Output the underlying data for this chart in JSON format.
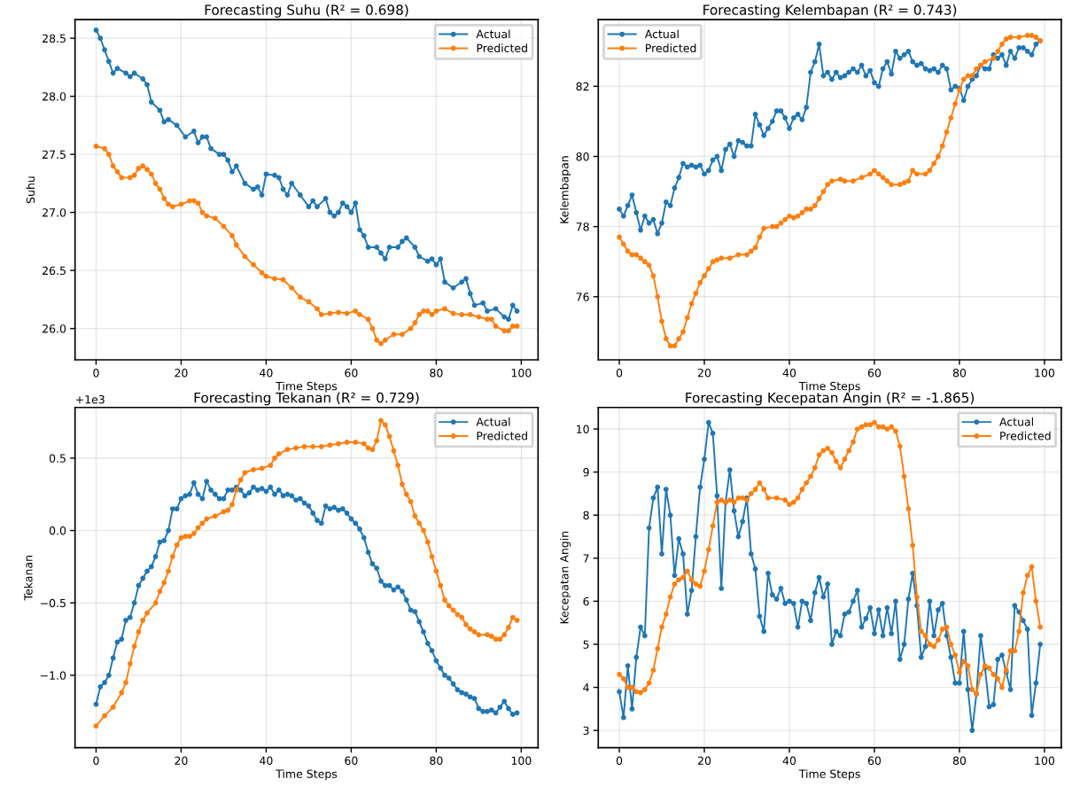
{
  "chart_data": [
    {
      "type": "line",
      "title": "Forecasting Suhu (R² = 0.698)",
      "xlabel": "Time Steps",
      "ylabel": "Suhu",
      "xlim": [
        -4.95,
        103.95
      ],
      "xticks": [
        0,
        20,
        40,
        60,
        80,
        100
      ],
      "ylim": [
        25.73,
        28.66
      ],
      "yticks": [
        {
          "value": 26.0,
          "label": "26.0"
        },
        {
          "value": 26.5,
          "label": "26.5"
        },
        {
          "value": 27.0,
          "label": "27.0"
        },
        {
          "value": 27.5,
          "label": "27.5"
        },
        {
          "value": 28.0,
          "label": "28.0"
        },
        {
          "value": 28.5,
          "label": "28.5"
        }
      ],
      "grid": true,
      "legend": "top right",
      "marker": "circle",
      "line_style": "solid",
      "series": [
        {
          "name": "Actual",
          "color": "#1f77b4",
          "x": [
            0,
            1,
            2,
            3,
            4,
            5,
            7,
            8,
            9,
            11,
            12,
            13,
            15,
            16,
            17,
            19,
            21,
            23,
            24,
            25,
            26,
            27,
            29,
            30,
            31,
            32,
            33,
            35,
            37,
            38,
            39,
            40,
            42,
            43,
            44,
            45,
            46,
            48,
            50,
            51,
            52,
            54,
            55,
            56,
            57,
            58,
            59,
            60,
            61,
            62,
            63,
            64,
            66,
            67,
            68,
            69,
            71,
            72,
            73,
            75,
            76,
            78,
            79,
            80,
            81,
            82,
            84,
            86,
            87,
            88,
            89,
            91,
            92,
            94,
            96,
            97,
            98,
            99
          ],
          "values": [
            28.57,
            28.5,
            28.4,
            28.3,
            28.2,
            28.24,
            28.2,
            28.17,
            28.2,
            28.15,
            28.1,
            27.95,
            27.88,
            27.78,
            27.8,
            27.75,
            27.65,
            27.7,
            27.6,
            27.65,
            27.65,
            27.55,
            27.5,
            27.5,
            27.45,
            27.35,
            27.4,
            27.25,
            27.2,
            27.22,
            27.15,
            27.33,
            27.32,
            27.3,
            27.2,
            27.15,
            27.25,
            27.15,
            27.05,
            27.1,
            27.05,
            27.12,
            27.0,
            26.97,
            27.0,
            27.08,
            27.05,
            27.0,
            27.08,
            26.85,
            26.8,
            26.7,
            26.7,
            26.65,
            26.6,
            26.7,
            26.7,
            26.75,
            26.78,
            26.7,
            26.62,
            26.58,
            26.6,
            26.55,
            26.6,
            26.4,
            26.35,
            26.4,
            26.43,
            26.3,
            26.2,
            26.22,
            26.15,
            26.17,
            26.1,
            26.08,
            26.2,
            26.15
          ]
        },
        {
          "name": "Predicted",
          "color": "#ff7f0e",
          "x": [
            0,
            2,
            3,
            4,
            5,
            6,
            8,
            9,
            10,
            11,
            12,
            13,
            14,
            15,
            16,
            17,
            18,
            20,
            22,
            23,
            24,
            25,
            26,
            28,
            30,
            32,
            33,
            35,
            37,
            39,
            40,
            42,
            44,
            46,
            48,
            50,
            52,
            53,
            55,
            57,
            59,
            61,
            62,
            64,
            65,
            66,
            67,
            68,
            70,
            72,
            74,
            75,
            76,
            77,
            78,
            79,
            80,
            82,
            84,
            86,
            88,
            90,
            92,
            93,
            94,
            96,
            97,
            98,
            99
          ],
          "values": [
            27.57,
            27.55,
            27.5,
            27.4,
            27.35,
            27.3,
            27.3,
            27.32,
            27.38,
            27.4,
            27.37,
            27.33,
            27.25,
            27.2,
            27.12,
            27.07,
            27.05,
            27.07,
            27.1,
            27.1,
            27.08,
            27.0,
            26.97,
            26.95,
            26.88,
            26.8,
            26.72,
            26.62,
            26.55,
            26.48,
            26.45,
            26.43,
            26.42,
            26.35,
            26.27,
            26.23,
            26.17,
            26.12,
            26.13,
            26.14,
            26.13,
            26.15,
            26.12,
            26.08,
            26.0,
            25.9,
            25.87,
            25.9,
            25.95,
            25.95,
            26.0,
            26.05,
            26.12,
            26.15,
            26.15,
            26.12,
            26.15,
            26.17,
            26.13,
            26.12,
            26.12,
            26.1,
            26.08,
            26.08,
            26.02,
            25.98,
            25.98,
            26.02,
            26.02
          ]
        }
      ]
    },
    {
      "type": "line",
      "title": "Forecasting Kelembapan (R² = 0.743)",
      "xlabel": "Time Steps",
      "ylabel": "Kelembapan",
      "xlim": [
        -4.95,
        103.95
      ],
      "xticks": [
        0,
        20,
        40,
        60,
        80,
        100
      ],
      "ylim": [
        74.2,
        83.9
      ],
      "yticks": [
        76,
        78,
        80,
        82
      ],
      "grid": true,
      "legend": "top left",
      "marker": "circle",
      "line_style": "solid",
      "series": [
        {
          "name": "Actual",
          "color": "#1f77b4",
          "x": [
            0,
            1,
            2,
            3,
            4,
            5,
            6,
            7,
            8,
            9,
            10,
            11,
            12,
            13,
            14,
            15,
            16,
            17,
            18,
            19,
            20,
            21,
            22,
            23,
            24,
            25,
            26,
            27,
            28,
            29,
            30,
            31,
            32,
            33,
            34,
            35,
            36,
            37,
            38,
            39,
            40,
            41,
            42,
            43,
            44,
            45,
            46,
            47,
            48,
            49,
            50,
            51,
            52,
            53,
            54,
            55,
            56,
            57,
            58,
            59,
            60,
            61,
            62,
            63,
            64,
            65,
            66,
            67,
            68,
            69,
            70,
            71,
            72,
            73,
            74,
            75,
            76,
            77,
            78,
            79,
            80,
            81,
            82,
            83,
            84,
            85,
            86,
            87,
            88,
            89,
            90,
            91,
            92,
            93,
            94,
            95,
            96,
            97,
            98,
            99
          ],
          "values": [
            78.5,
            78.3,
            78.6,
            78.9,
            78.4,
            77.9,
            78.3,
            78.1,
            78.2,
            77.8,
            78.1,
            78.7,
            78.6,
            79.1,
            79.4,
            79.8,
            79.7,
            79.75,
            79.7,
            79.75,
            79.5,
            79.6,
            79.9,
            80.0,
            79.6,
            80.2,
            80.35,
            80.0,
            80.45,
            80.4,
            80.3,
            80.3,
            81.2,
            80.9,
            80.6,
            80.8,
            81.0,
            81.3,
            81.3,
            81.1,
            80.8,
            81.1,
            81.2,
            81.05,
            81.4,
            82.4,
            82.7,
            83.2,
            82.3,
            82.4,
            82.2,
            82.4,
            82.25,
            82.3,
            82.4,
            82.5,
            82.4,
            82.6,
            82.3,
            82.45,
            82.1,
            82.0,
            82.5,
            82.7,
            82.35,
            83.0,
            82.8,
            82.9,
            83.0,
            82.7,
            82.6,
            82.65,
            82.5,
            82.45,
            82.5,
            82.4,
            82.6,
            82.5,
            81.9,
            82.0,
            81.95,
            81.6,
            82.0,
            82.2,
            82.3,
            82.6,
            82.5,
            82.5,
            82.9,
            82.8,
            82.9,
            82.6,
            83.0,
            82.8,
            83.1,
            83.1,
            83.0,
            82.9,
            83.2,
            83.3
          ]
        },
        {
          "name": "Predicted",
          "color": "#ff7f0e",
          "x": [
            0,
            1,
            2,
            3,
            4,
            5,
            6,
            7,
            8,
            9,
            10,
            11,
            12,
            13,
            14,
            15,
            16,
            17,
            18,
            19,
            20,
            21,
            22,
            23,
            24,
            26,
            28,
            30,
            31,
            32,
            33,
            34,
            36,
            37,
            38,
            39,
            40,
            41,
            42,
            43,
            44,
            45,
            46,
            47,
            48,
            49,
            50,
            52,
            53,
            55,
            57,
            59,
            60,
            61,
            62,
            63,
            64,
            66,
            67,
            68,
            69,
            70,
            72,
            73,
            74,
            75,
            76,
            77,
            78,
            79,
            80,
            81,
            82,
            83,
            84,
            85,
            86,
            88,
            89,
            90,
            91,
            92,
            94,
            96,
            97,
            98,
            99
          ],
          "values": [
            77.7,
            77.5,
            77.3,
            77.2,
            77.2,
            77.1,
            77.0,
            76.9,
            76.6,
            76.0,
            75.3,
            74.8,
            74.6,
            74.6,
            74.8,
            75.0,
            75.4,
            75.8,
            76.1,
            76.4,
            76.6,
            76.8,
            77.0,
            77.05,
            77.1,
            77.1,
            77.2,
            77.2,
            77.3,
            77.4,
            77.7,
            77.95,
            78.0,
            78.0,
            78.1,
            78.2,
            78.3,
            78.25,
            78.3,
            78.4,
            78.5,
            78.5,
            78.6,
            78.8,
            79.0,
            79.2,
            79.3,
            79.35,
            79.3,
            79.3,
            79.4,
            79.5,
            79.6,
            79.5,
            79.4,
            79.3,
            79.2,
            79.2,
            79.25,
            79.3,
            79.6,
            79.5,
            79.5,
            79.6,
            79.8,
            80.0,
            80.3,
            80.7,
            81.1,
            81.5,
            81.9,
            82.2,
            82.3,
            82.3,
            82.5,
            82.6,
            82.7,
            82.8,
            83.0,
            83.2,
            83.35,
            83.4,
            83.4,
            83.45,
            83.45,
            83.4,
            83.3
          ]
        }
      ]
    },
    {
      "type": "line",
      "title": "Forecasting Tekanan (R² = 0.729)",
      "xlabel": "Time Steps",
      "ylabel": "Tekanan",
      "annotations": [
        "+1e3"
      ],
      "xlim": [
        -4.95,
        103.95
      ],
      "xticks": [
        0,
        20,
        40,
        60,
        80,
        100
      ],
      "ylim": [
        -1.5,
        0.85
      ],
      "yticks": [
        {
          "value": -1.0,
          "label": "−1.0"
        },
        {
          "value": -0.5,
          "label": "−0.5"
        },
        {
          "value": 0.0,
          "label": "0.0"
        },
        0.5
      ],
      "grid": true,
      "legend": "top right",
      "marker": "circle",
      "line_style": "solid",
      "series": [
        {
          "name": "Actual",
          "color": "#1f77b4",
          "x": [
            0,
            1,
            2,
            3,
            4,
            5,
            6,
            7,
            8,
            9,
            10,
            11,
            12,
            13,
            14,
            15,
            16,
            17,
            18,
            19,
            20,
            21,
            22,
            23,
            24,
            25,
            26,
            27,
            28,
            29,
            30,
            31,
            32,
            33,
            34,
            35,
            36,
            37,
            38,
            39,
            40,
            41,
            42,
            43,
            44,
            45,
            46,
            47,
            48,
            49,
            50,
            51,
            52,
            53,
            54,
            55,
            56,
            57,
            58,
            59,
            60,
            61,
            62,
            63,
            64,
            65,
            66,
            67,
            68,
            69,
            70,
            71,
            72,
            73,
            74,
            75,
            76,
            77,
            78,
            79,
            80,
            81,
            82,
            83,
            84,
            85,
            86,
            87,
            88,
            89,
            90,
            91,
            92,
            93,
            94,
            95,
            96,
            97,
            98,
            99
          ],
          "values": [
            -1.2,
            -1.08,
            -1.05,
            -1.0,
            -0.88,
            -0.77,
            -0.75,
            -0.62,
            -0.6,
            -0.5,
            -0.38,
            -0.33,
            -0.28,
            -0.25,
            -0.18,
            -0.08,
            -0.07,
            0.0,
            0.15,
            0.15,
            0.22,
            0.24,
            0.25,
            0.33,
            0.25,
            0.22,
            0.34,
            0.28,
            0.25,
            0.22,
            0.22,
            0.28,
            0.28,
            0.3,
            0.28,
            0.24,
            0.26,
            0.3,
            0.28,
            0.29,
            0.27,
            0.3,
            0.25,
            0.28,
            0.24,
            0.25,
            0.24,
            0.21,
            0.22,
            0.19,
            0.17,
            0.12,
            0.07,
            0.05,
            0.17,
            0.15,
            0.16,
            0.14,
            0.15,
            0.12,
            0.08,
            0.05,
            0.01,
            -0.05,
            -0.15,
            -0.23,
            -0.26,
            -0.35,
            -0.38,
            -0.38,
            -0.41,
            -0.39,
            -0.42,
            -0.48,
            -0.55,
            -0.56,
            -0.63,
            -0.7,
            -0.78,
            -0.83,
            -0.9,
            -0.95,
            -1.0,
            -1.02,
            -1.06,
            -1.1,
            -1.12,
            -1.13,
            -1.15,
            -1.16,
            -1.23,
            -1.25,
            -1.25,
            -1.24,
            -1.26,
            -1.22,
            -1.18,
            -1.23,
            -1.27,
            -1.26
          ]
        },
        {
          "name": "Predicted",
          "color": "#ff7f0e",
          "x": [
            0,
            2,
            4,
            6,
            7,
            8,
            9,
            10,
            11,
            12,
            14,
            15,
            16,
            17,
            18,
            19,
            20,
            21,
            22,
            23,
            24,
            25,
            26,
            28,
            30,
            31,
            32,
            33,
            34,
            35,
            37,
            39,
            41,
            42,
            43,
            45,
            47,
            49,
            51,
            53,
            55,
            57,
            59,
            61,
            63,
            64,
            65,
            66,
            67,
            68,
            69,
            70,
            71,
            72,
            73,
            74,
            75,
            76,
            77,
            78,
            79,
            80,
            81,
            82,
            83,
            84,
            85,
            86,
            87,
            88,
            89,
            90,
            92,
            93,
            94,
            95,
            96,
            97,
            98,
            99
          ],
          "values": [
            -1.35,
            -1.28,
            -1.22,
            -1.12,
            -1.05,
            -0.92,
            -0.8,
            -0.7,
            -0.62,
            -0.57,
            -0.5,
            -0.42,
            -0.36,
            -0.28,
            -0.18,
            -0.1,
            -0.05,
            -0.04,
            -0.04,
            -0.02,
            0.02,
            0.05,
            0.08,
            0.1,
            0.13,
            0.14,
            0.18,
            0.28,
            0.35,
            0.4,
            0.42,
            0.43,
            0.45,
            0.5,
            0.53,
            0.56,
            0.57,
            0.58,
            0.58,
            0.58,
            0.59,
            0.6,
            0.61,
            0.61,
            0.6,
            0.57,
            0.56,
            0.62,
            0.76,
            0.73,
            0.65,
            0.55,
            0.45,
            0.32,
            0.25,
            0.2,
            0.1,
            0.05,
            0.0,
            -0.08,
            -0.18,
            -0.28,
            -0.38,
            -0.48,
            -0.52,
            -0.55,
            -0.58,
            -0.6,
            -0.65,
            -0.68,
            -0.7,
            -0.72,
            -0.72,
            -0.73,
            -0.75,
            -0.75,
            -0.72,
            -0.67,
            -0.6,
            -0.62
          ]
        }
      ]
    },
    {
      "type": "line",
      "title": "Forecasting Kecepatan Angin (R² = -1.865)",
      "xlabel": "Time Steps",
      "ylabel": "Kecepatan Angin",
      "xlim": [
        -4.95,
        103.95
      ],
      "xticks": [
        0,
        20,
        40,
        60,
        80,
        100
      ],
      "ylim": [
        2.6,
        10.5
      ],
      "yticks": [
        3,
        4,
        5,
        6,
        7,
        8,
        9,
        10
      ],
      "grid": true,
      "legend": "top right",
      "marker": "circle",
      "line_style": "solid",
      "series": [
        {
          "name": "Actual",
          "color": "#1f77b4",
          "x": [
            0,
            1,
            2,
            3,
            4,
            5,
            6,
            7,
            8,
            9,
            10,
            11,
            12,
            13,
            14,
            15,
            16,
            17,
            18,
            19,
            20,
            21,
            22,
            23,
            24,
            25,
            26,
            27,
            28,
            29,
            30,
            31,
            32,
            33,
            34,
            35,
            36,
            37,
            38,
            39,
            40,
            41,
            42,
            43,
            44,
            45,
            46,
            47,
            48,
            49,
            50,
            51,
            52,
            53,
            54,
            55,
            56,
            57,
            58,
            59,
            60,
            61,
            62,
            63,
            64,
            65,
            66,
            67,
            68,
            69,
            70,
            71,
            72,
            73,
            74,
            75,
            76,
            77,
            78,
            79,
            80,
            81,
            82,
            83,
            84,
            85,
            86,
            87,
            88,
            89,
            90,
            91,
            92,
            93,
            94,
            95,
            96,
            97,
            98,
            99
          ],
          "values": [
            3.9,
            3.3,
            4.5,
            3.5,
            4.7,
            5.4,
            5.2,
            7.7,
            8.4,
            8.65,
            7.1,
            8.6,
            8.0,
            6.6,
            7.45,
            7.1,
            5.7,
            6.25,
            7.5,
            8.65,
            9.3,
            10.15,
            9.9,
            8.45,
            6.3,
            8.3,
            9.05,
            8.1,
            7.5,
            7.85,
            8.4,
            7.1,
            6.75,
            5.65,
            5.3,
            6.65,
            6.15,
            6.05,
            6.3,
            5.95,
            6.0,
            5.95,
            5.4,
            6.0,
            5.95,
            5.55,
            6.2,
            6.55,
            6.1,
            6.4,
            5.0,
            5.3,
            5.2,
            5.7,
            5.75,
            6.0,
            6.25,
            5.4,
            5.6,
            5.85,
            5.25,
            5.8,
            5.2,
            5.85,
            5.25,
            6.0,
            4.65,
            5.0,
            6.05,
            6.65,
            5.9,
            4.7,
            4.95,
            6.0,
            5.2,
            5.8,
            5.95,
            5.2,
            4.7,
            4.1,
            4.1,
            5.3,
            3.95,
            3.0,
            3.85,
            5.2,
            4.45,
            3.55,
            3.6,
            4.65,
            4.75,
            4.35,
            3.95,
            5.9,
            5.75,
            5.55,
            5.35,
            3.35,
            4.1,
            5.0
          ]
        },
        {
          "name": "Predicted",
          "color": "#ff7f0e",
          "x": [
            0,
            1,
            2,
            3,
            4,
            5,
            6,
            7,
            8,
            9,
            10,
            11,
            12,
            13,
            14,
            15,
            16,
            17,
            18,
            19,
            20,
            21,
            22,
            23,
            24,
            25,
            26,
            27,
            28,
            29,
            30,
            31,
            32,
            33,
            34,
            35,
            37,
            39,
            40,
            41,
            42,
            43,
            44,
            45,
            46,
            47,
            48,
            49,
            50,
            51,
            52,
            53,
            54,
            55,
            56,
            57,
            58,
            59,
            60,
            61,
            62,
            63,
            64,
            65,
            66,
            67,
            68,
            69,
            70,
            71,
            72,
            73,
            74,
            75,
            76,
            77,
            78,
            79,
            80,
            81,
            82,
            83,
            84,
            85,
            86,
            87,
            88,
            89,
            90,
            91,
            92,
            93,
            94,
            95,
            96,
            97,
            98,
            99
          ],
          "values": [
            4.3,
            4.2,
            4.0,
            4.0,
            3.9,
            3.88,
            3.95,
            4.1,
            4.4,
            4.9,
            5.4,
            5.7,
            6.1,
            6.4,
            6.5,
            6.55,
            6.7,
            6.5,
            6.4,
            6.35,
            6.7,
            7.2,
            7.75,
            8.3,
            8.35,
            8.3,
            8.35,
            8.3,
            8.4,
            8.4,
            8.35,
            8.5,
            8.6,
            8.75,
            8.6,
            8.4,
            8.4,
            8.35,
            8.25,
            8.3,
            8.4,
            8.6,
            8.75,
            8.9,
            9.1,
            9.4,
            9.5,
            9.55,
            9.45,
            9.25,
            9.1,
            9.3,
            9.5,
            9.7,
            10.0,
            10.05,
            10.1,
            10.1,
            10.15,
            10.05,
            10.05,
            10.0,
            10.05,
            9.95,
            9.6,
            8.9,
            8.15,
            7.3,
            6.1,
            5.3,
            5.2,
            5.0,
            4.95,
            5.1,
            5.35,
            5.4,
            5.0,
            4.75,
            4.35,
            4.6,
            4.5,
            3.95,
            3.85,
            4.3,
            4.5,
            4.45,
            4.3,
            4.2,
            4.0,
            4.4,
            4.85,
            4.85,
            5.3,
            6.2,
            6.6,
            6.8,
            6.0,
            5.4
          ]
        }
      ]
    }
  ]
}
